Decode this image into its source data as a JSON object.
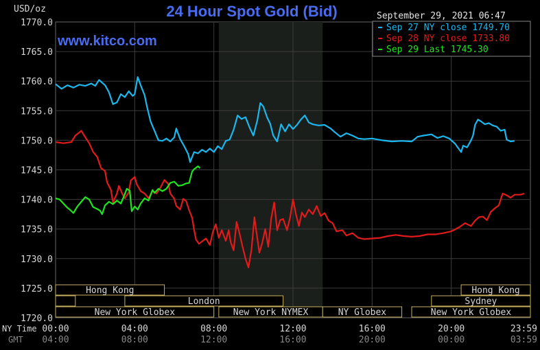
{
  "title": "24 Hour Spot Gold (Bid)",
  "unit_label": "USD/oz",
  "timestamp": "September 29, 2021 06:47",
  "watermark": "www.kitco.com",
  "colors": {
    "background": "#000000",
    "grid": "#3c3c3c",
    "title": "#4a6cf0",
    "watermark": "#4a6cf0",
    "axis_text": "#d8d8d8",
    "gmt_text": "#888888",
    "session_box": "#c8b060",
    "session_text": "#d8d8d8",
    "nymex_shade": "#1b1f1b"
  },
  "axis": {
    "ny_time_label": "NY Time",
    "gmt_label": "GMT",
    "ny_ticks": [
      "00:00",
      "04:00",
      "08:00",
      "12:00",
      "16:00",
      "20:00",
      "23:59"
    ],
    "gmt_ticks": [
      "04:00",
      "08:00",
      "12:00",
      "16:00",
      "20:00",
      "00:00",
      "03:59"
    ]
  },
  "sessions": {
    "row1": [
      {
        "label": "Hong Kong",
        "start": 0,
        "end": 5.5
      },
      {
        "label": "Hong Kong",
        "start": 20.5,
        "end": 24
      }
    ],
    "row2": [
      {
        "label": "",
        "start": 0,
        "end": 1
      },
      {
        "label": "London",
        "start": 3.5,
        "end": 11.5
      },
      {
        "label": "Sydney",
        "start": 19,
        "end": 24
      }
    ],
    "row3": [
      {
        "label": "New York Globex",
        "start": 0,
        "end": 8
      },
      {
        "label": "New York NYMEX",
        "start": 8.25,
        "end": 13.5
      },
      {
        "label": "NY Globex",
        "start": 13.5,
        "end": 17.5
      },
      {
        "label": "New York Globex",
        "start": 18,
        "end": 24
      }
    ]
  },
  "chart_data": {
    "type": "line",
    "xlabel": "NY Time",
    "ylabel": "USD/oz",
    "xlim": [
      0,
      24
    ],
    "ylim": [
      1720,
      1770
    ],
    "yticks": [
      1720,
      1725,
      1730,
      1735,
      1740,
      1745,
      1750,
      1755,
      1760,
      1765,
      1770
    ],
    "nymex_session": [
      8.25,
      13.5
    ],
    "legend_position": "top-right",
    "series": [
      {
        "name": "Sep 27 NY close 1749.70",
        "color": "#1ab8ee",
        "points": [
          [
            0,
            1759.5
          ],
          [
            0.3,
            1758.7
          ],
          [
            0.6,
            1759.3
          ],
          [
            0.9,
            1758.9
          ],
          [
            1.2,
            1759.4
          ],
          [
            1.5,
            1759.2
          ],
          [
            1.8,
            1759.6
          ],
          [
            2.0,
            1759.2
          ],
          [
            2.2,
            1760.2
          ],
          [
            2.5,
            1759.3
          ],
          [
            2.7,
            1758.1
          ],
          [
            2.9,
            1756.1
          ],
          [
            3.1,
            1756.4
          ],
          [
            3.3,
            1757.8
          ],
          [
            3.5,
            1757.3
          ],
          [
            3.7,
            1758.3
          ],
          [
            3.9,
            1757.5
          ],
          [
            4.0,
            1757.8
          ],
          [
            4.15,
            1760.7
          ],
          [
            4.3,
            1759.3
          ],
          [
            4.5,
            1757.6
          ],
          [
            4.6,
            1756.0
          ],
          [
            4.8,
            1753.2
          ],
          [
            5.0,
            1751.6
          ],
          [
            5.2,
            1750.0
          ],
          [
            5.4,
            1749.9
          ],
          [
            5.6,
            1750.3
          ],
          [
            5.8,
            1749.8
          ],
          [
            6.0,
            1750.5
          ],
          [
            6.1,
            1752.0
          ],
          [
            6.3,
            1750.2
          ],
          [
            6.5,
            1749.0
          ],
          [
            6.7,
            1747.7
          ],
          [
            6.8,
            1746.3
          ],
          [
            7.0,
            1748.0
          ],
          [
            7.2,
            1747.8
          ],
          [
            7.4,
            1748.4
          ],
          [
            7.6,
            1748.0
          ],
          [
            7.8,
            1748.6
          ],
          [
            8.0,
            1748.0
          ],
          [
            8.2,
            1749.0
          ],
          [
            8.4,
            1748.5
          ],
          [
            8.6,
            1749.9
          ],
          [
            8.8,
            1750.1
          ],
          [
            9.0,
            1751.8
          ],
          [
            9.2,
            1754.2
          ],
          [
            9.4,
            1753.6
          ],
          [
            9.6,
            1753.9
          ],
          [
            9.8,
            1752.2
          ],
          [
            10.0,
            1750.8
          ],
          [
            10.2,
            1753.4
          ],
          [
            10.35,
            1756.3
          ],
          [
            10.5,
            1755.7
          ],
          [
            10.7,
            1753.8
          ],
          [
            10.85,
            1752.8
          ],
          [
            11.0,
            1750.8
          ],
          [
            11.2,
            1749.8
          ],
          [
            11.4,
            1752.7
          ],
          [
            11.6,
            1751.5
          ],
          [
            11.8,
            1752.7
          ],
          [
            12.0,
            1751.9
          ],
          [
            12.2,
            1752.6
          ],
          [
            12.4,
            1753.5
          ],
          [
            12.6,
            1754.2
          ],
          [
            12.8,
            1753.0
          ],
          [
            13.0,
            1752.7
          ],
          [
            13.3,
            1752.5
          ],
          [
            13.6,
            1752.6
          ],
          [
            13.9,
            1752.0
          ],
          [
            14.1,
            1751.4
          ],
          [
            14.4,
            1750.6
          ],
          [
            14.7,
            1751.2
          ],
          [
            15.0,
            1750.8
          ],
          [
            15.3,
            1750.3
          ],
          [
            15.6,
            1750.2
          ],
          [
            16.0,
            1750.3
          ],
          [
            16.5,
            1750.0
          ],
          [
            17.0,
            1749.8
          ],
          [
            17.5,
            1749.9
          ],
          [
            18.0,
            1749.8
          ],
          [
            18.3,
            1750.6
          ],
          [
            18.6,
            1750.8
          ],
          [
            19.0,
            1751.0
          ],
          [
            19.3,
            1750.4
          ],
          [
            19.6,
            1750.7
          ],
          [
            19.9,
            1750.3
          ],
          [
            20.2,
            1749.4
          ],
          [
            20.5,
            1748.0
          ],
          [
            20.6,
            1749.1
          ],
          [
            20.8,
            1748.8
          ],
          [
            21.0,
            1750.0
          ],
          [
            21.1,
            1750.8
          ],
          [
            21.2,
            1752.6
          ],
          [
            21.35,
            1753.5
          ],
          [
            21.5,
            1753.2
          ],
          [
            21.7,
            1752.7
          ],
          [
            21.9,
            1752.9
          ],
          [
            22.1,
            1752.5
          ],
          [
            22.3,
            1752.3
          ],
          [
            22.5,
            1751.6
          ],
          [
            22.7,
            1751.8
          ],
          [
            22.8,
            1750.1
          ],
          [
            23.0,
            1749.8
          ],
          [
            23.2,
            1749.9
          ]
        ]
      },
      {
        "name": "Sep 28 NY close 1733.80",
        "color": "#e11a1a",
        "points": [
          [
            0,
            1749.7
          ],
          [
            0.4,
            1749.5
          ],
          [
            0.8,
            1749.7
          ],
          [
            1.0,
            1750.8
          ],
          [
            1.3,
            1751.6
          ],
          [
            1.5,
            1750.5
          ],
          [
            1.7,
            1749.5
          ],
          [
            1.9,
            1748.0
          ],
          [
            2.1,
            1747.2
          ],
          [
            2.3,
            1745.3
          ],
          [
            2.5,
            1744.8
          ],
          [
            2.6,
            1742.9
          ],
          [
            2.8,
            1741.6
          ],
          [
            2.9,
            1739.5
          ],
          [
            3.1,
            1741.0
          ],
          [
            3.2,
            1742.3
          ],
          [
            3.35,
            1741.1
          ],
          [
            3.5,
            1740.2
          ],
          [
            3.7,
            1741.2
          ],
          [
            3.8,
            1743.2
          ],
          [
            4.0,
            1743.8
          ],
          [
            4.1,
            1742.6
          ],
          [
            4.3,
            1741.4
          ],
          [
            4.5,
            1741.0
          ],
          [
            4.7,
            1740.2
          ],
          [
            4.9,
            1741.4
          ],
          [
            5.1,
            1741.0
          ],
          [
            5.3,
            1742.0
          ],
          [
            5.5,
            1743.3
          ],
          [
            5.7,
            1742.6
          ],
          [
            5.8,
            1741.0
          ],
          [
            6.0,
            1740.1
          ],
          [
            6.1,
            1738.9
          ],
          [
            6.3,
            1738.3
          ],
          [
            6.45,
            1740.1
          ],
          [
            6.6,
            1739.7
          ],
          [
            6.75,
            1738.2
          ],
          [
            6.9,
            1736.9
          ],
          [
            7.0,
            1734.9
          ],
          [
            7.1,
            1733.2
          ],
          [
            7.25,
            1732.5
          ],
          [
            7.4,
            1732.9
          ],
          [
            7.6,
            1733.4
          ],
          [
            7.8,
            1732.3
          ],
          [
            7.95,
            1734.5
          ],
          [
            8.1,
            1735.8
          ],
          [
            8.25,
            1733.5
          ],
          [
            8.4,
            1734.8
          ],
          [
            8.6,
            1733.0
          ],
          [
            8.75,
            1734.8
          ],
          [
            8.85,
            1732.8
          ],
          [
            9.0,
            1731.4
          ],
          [
            9.15,
            1736.2
          ],
          [
            9.3,
            1734.2
          ],
          [
            9.45,
            1732.0
          ],
          [
            9.6,
            1730.0
          ],
          [
            9.75,
            1728.5
          ],
          [
            9.9,
            1731.5
          ],
          [
            10.05,
            1737.0
          ],
          [
            10.15,
            1734.5
          ],
          [
            10.3,
            1731.0
          ],
          [
            10.45,
            1732.7
          ],
          [
            10.6,
            1735.0
          ],
          [
            10.75,
            1732.0
          ],
          [
            10.9,
            1736.8
          ],
          [
            11.05,
            1739.5
          ],
          [
            11.2,
            1734.8
          ],
          [
            11.35,
            1736.5
          ],
          [
            11.5,
            1736.7
          ],
          [
            11.7,
            1734.8
          ],
          [
            11.85,
            1736.9
          ],
          [
            12.0,
            1740.0
          ],
          [
            12.15,
            1737.5
          ],
          [
            12.3,
            1735.5
          ],
          [
            12.45,
            1737.8
          ],
          [
            12.6,
            1737.0
          ],
          [
            12.8,
            1738.3
          ],
          [
            13.0,
            1737.5
          ],
          [
            13.2,
            1738.9
          ],
          [
            13.4,
            1737.2
          ],
          [
            13.6,
            1737.7
          ],
          [
            13.8,
            1736.4
          ],
          [
            14.0,
            1736.0
          ],
          [
            14.2,
            1734.6
          ],
          [
            14.5,
            1734.8
          ],
          [
            14.7,
            1733.9
          ],
          [
            15.0,
            1734.3
          ],
          [
            15.3,
            1733.5
          ],
          [
            15.6,
            1733.3
          ],
          [
            16.0,
            1733.4
          ],
          [
            16.4,
            1733.5
          ],
          [
            16.8,
            1733.8
          ],
          [
            17.2,
            1734.0
          ],
          [
            17.6,
            1733.8
          ],
          [
            18.0,
            1733.7
          ],
          [
            18.4,
            1733.8
          ],
          [
            18.8,
            1734.1
          ],
          [
            19.2,
            1734.1
          ],
          [
            19.6,
            1734.3
          ],
          [
            20.0,
            1734.6
          ],
          [
            20.4,
            1735.3
          ],
          [
            20.7,
            1736.0
          ],
          [
            21.0,
            1735.5
          ],
          [
            21.2,
            1736.4
          ],
          [
            21.4,
            1737.0
          ],
          [
            21.6,
            1737.1
          ],
          [
            21.8,
            1736.5
          ],
          [
            22.0,
            1737.9
          ],
          [
            22.2,
            1738.5
          ],
          [
            22.4,
            1739.0
          ],
          [
            22.6,
            1741.0
          ],
          [
            22.8,
            1740.7
          ],
          [
            23.0,
            1740.3
          ],
          [
            23.2,
            1740.8
          ],
          [
            23.5,
            1740.8
          ],
          [
            23.7,
            1741.0
          ]
        ]
      },
      {
        "name": "Sep 29 Last 1745.30",
        "color": "#1ee61e",
        "points": [
          [
            0,
            1740.2
          ],
          [
            0.2,
            1740.0
          ],
          [
            0.4,
            1739.3
          ],
          [
            0.6,
            1738.6
          ],
          [
            0.75,
            1738.2
          ],
          [
            0.9,
            1737.7
          ],
          [
            1.1,
            1738.8
          ],
          [
            1.3,
            1739.6
          ],
          [
            1.5,
            1740.4
          ],
          [
            1.7,
            1740.0
          ],
          [
            1.9,
            1738.7
          ],
          [
            2.1,
            1738.4
          ],
          [
            2.25,
            1738.1
          ],
          [
            2.35,
            1737.5
          ],
          [
            2.5,
            1739.0
          ],
          [
            2.7,
            1739.6
          ],
          [
            2.9,
            1739.2
          ],
          [
            3.1,
            1739.8
          ],
          [
            3.3,
            1739.3
          ],
          [
            3.45,
            1740.5
          ],
          [
            3.6,
            1741.8
          ],
          [
            3.75,
            1741.5
          ],
          [
            3.85,
            1738.0
          ],
          [
            4.0,
            1738.8
          ],
          [
            4.15,
            1738.3
          ],
          [
            4.3,
            1739.3
          ],
          [
            4.5,
            1740.2
          ],
          [
            4.7,
            1739.8
          ],
          [
            4.9,
            1741.6
          ],
          [
            5.0,
            1741.1
          ],
          [
            5.2,
            1741.8
          ],
          [
            5.4,
            1741.4
          ],
          [
            5.6,
            1741.8
          ],
          [
            5.8,
            1742.8
          ],
          [
            6.0,
            1743.0
          ],
          [
            6.2,
            1742.3
          ],
          [
            6.4,
            1742.4
          ],
          [
            6.6,
            1742.7
          ],
          [
            6.75,
            1742.8
          ],
          [
            6.9,
            1744.7
          ],
          [
            7.0,
            1745.1
          ],
          [
            7.2,
            1745.6
          ],
          [
            7.3,
            1745.3
          ]
        ]
      }
    ]
  }
}
